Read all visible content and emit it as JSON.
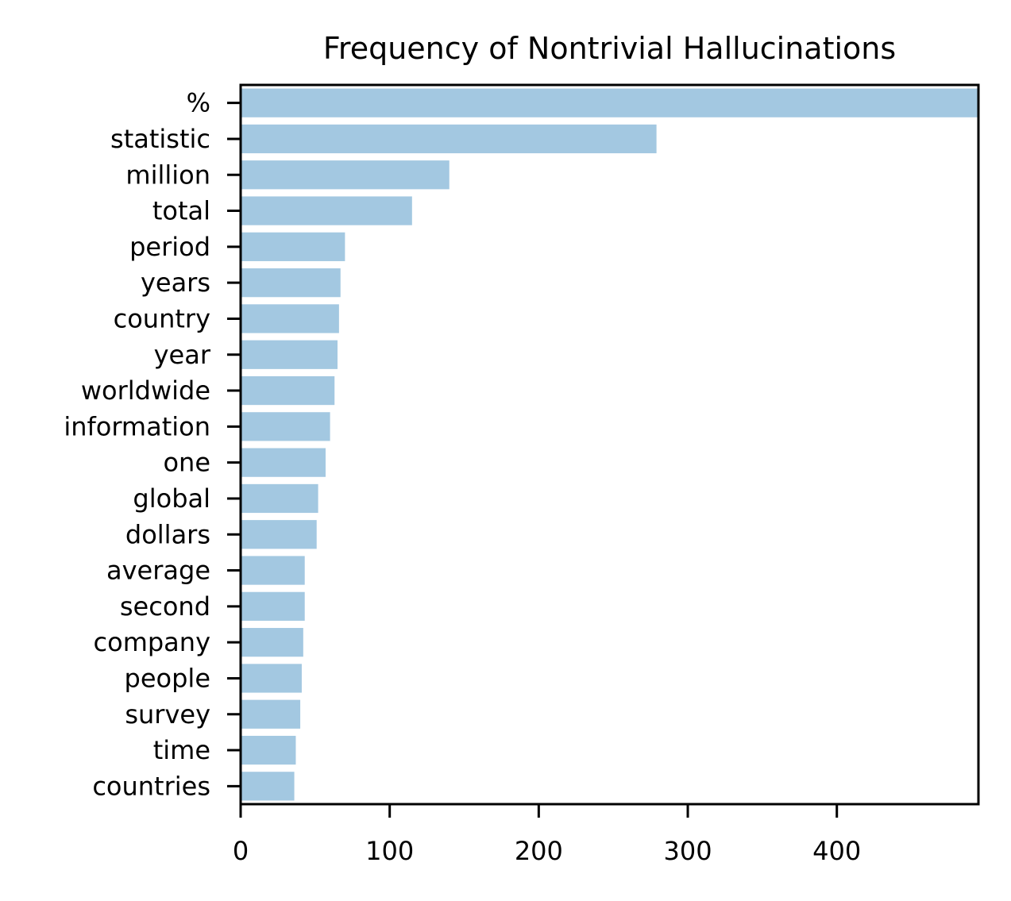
{
  "chart_data": {
    "type": "bar",
    "orientation": "horizontal",
    "title": "Frequency of Nontrivial Hallucinations",
    "xlabel": "",
    "ylabel": "",
    "categories": [
      "%",
      "statistic",
      "million",
      "total",
      "period",
      "years",
      "country",
      "year",
      "worldwide",
      "information",
      "one",
      "global",
      "dollars",
      "average",
      "second",
      "company",
      "people",
      "survey",
      "time",
      "countries"
    ],
    "values": [
      495,
      279,
      140,
      115,
      70,
      67,
      66,
      65,
      63,
      60,
      57,
      52,
      51,
      43,
      43,
      42,
      41,
      40,
      37,
      36
    ],
    "xlim": [
      0,
      495
    ],
    "xticks": [
      0,
      100,
      200,
      300,
      400
    ],
    "grid": false,
    "legend": "none",
    "bar_color": "#a3c8e1"
  }
}
